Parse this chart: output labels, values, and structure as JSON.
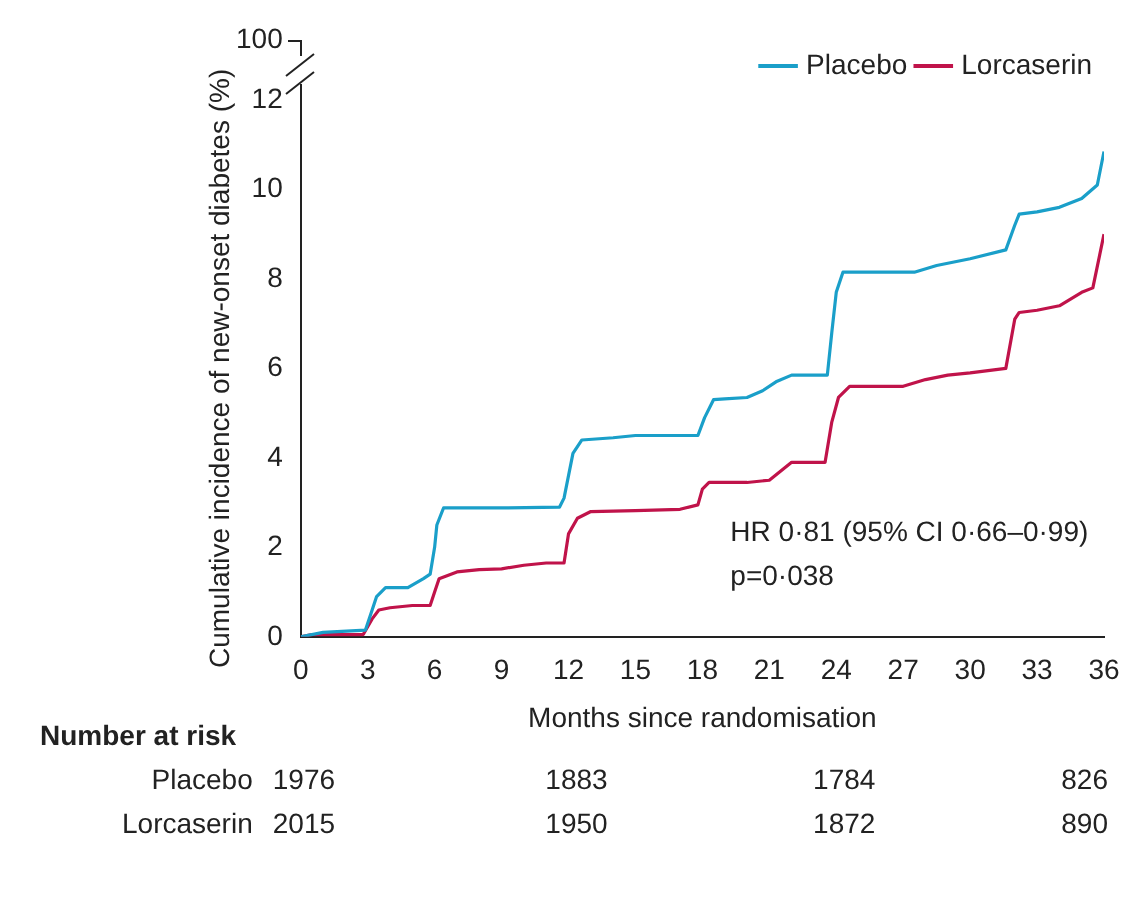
{
  "chart_data": {
    "type": "line",
    "xlabel": "Months since randomisation",
    "ylabel": "Cumulative incidence of new-onset diabetes (%)",
    "xlim": [
      0,
      36
    ],
    "xticks": [
      0,
      3,
      6,
      9,
      12,
      15,
      18,
      21,
      24,
      27,
      30,
      33,
      36
    ],
    "ylim": [
      0,
      12
    ],
    "yticks": [
      0,
      2,
      4,
      6,
      8,
      10,
      12
    ],
    "grid": false,
    "legend": "top right",
    "marker": "none",
    "line_style": "solid",
    "series": [
      {
        "name": "Placebo",
        "color": "#1a9fc9",
        "x": [
          0,
          1,
          2.9,
          3.2,
          3.4,
          3.8,
          4.8,
          5.5,
          5.8,
          6,
          6.1,
          6.4,
          9,
          11.6,
          11.8,
          12.2,
          12.6,
          14,
          15,
          17.8,
          18.1,
          18.5,
          19,
          20,
          20.7,
          21.3,
          22,
          23.6,
          23.8,
          24,
          24.3,
          27.5,
          28.5,
          30,
          31.6,
          32,
          32.2,
          33,
          34,
          35,
          35.7,
          36
        ],
        "values": [
          0,
          0.1,
          0.15,
          0.6,
          0.9,
          1.1,
          1.1,
          1.3,
          1.4,
          2,
          2.5,
          2.88,
          2.88,
          2.9,
          3.1,
          4.1,
          4.4,
          4.45,
          4.5,
          4.5,
          4.9,
          5.3,
          5.32,
          5.35,
          5.5,
          5.7,
          5.85,
          5.85,
          6.8,
          7.7,
          8.15,
          8.15,
          8.3,
          8.45,
          8.65,
          9.2,
          9.45,
          9.5,
          9.6,
          9.8,
          10.1,
          10.85
        ]
      },
      {
        "name": "Lorcaserin",
        "color": "#c0134a",
        "x": [
          0,
          0.5,
          2.8,
          3.2,
          3.5,
          4,
          5,
          5.8,
          6,
          6.2,
          7,
          8,
          9,
          10,
          11,
          11.8,
          12,
          12.4,
          13,
          15,
          17,
          17.8,
          18,
          18.3,
          20,
          21,
          22,
          23.5,
          23.8,
          24.1,
          24.6,
          27,
          28,
          29,
          30,
          31.6,
          32,
          32.2,
          33,
          34,
          35,
          35.5,
          36
        ],
        "values": [
          0,
          0.05,
          0.05,
          0.4,
          0.6,
          0.65,
          0.7,
          0.7,
          1,
          1.3,
          1.45,
          1.5,
          1.52,
          1.6,
          1.65,
          1.65,
          2.3,
          2.65,
          2.8,
          2.82,
          2.85,
          2.95,
          3.3,
          3.45,
          3.45,
          3.5,
          3.9,
          3.9,
          4.8,
          5.35,
          5.6,
          5.6,
          5.75,
          5.85,
          5.9,
          6,
          7.1,
          7.25,
          7.3,
          7.4,
          7.7,
          7.8,
          9
        ]
      }
    ],
    "annotations": [
      "HR 0·81 (95% CI 0·66–0·99)",
      "p=0·038",
      "Number at risk",
      "Placebo",
      "1976",
      "1883",
      "1784",
      "826",
      "Lorcaserin",
      "2015",
      "1950",
      "1872",
      "890",
      "100"
    ]
  }
}
